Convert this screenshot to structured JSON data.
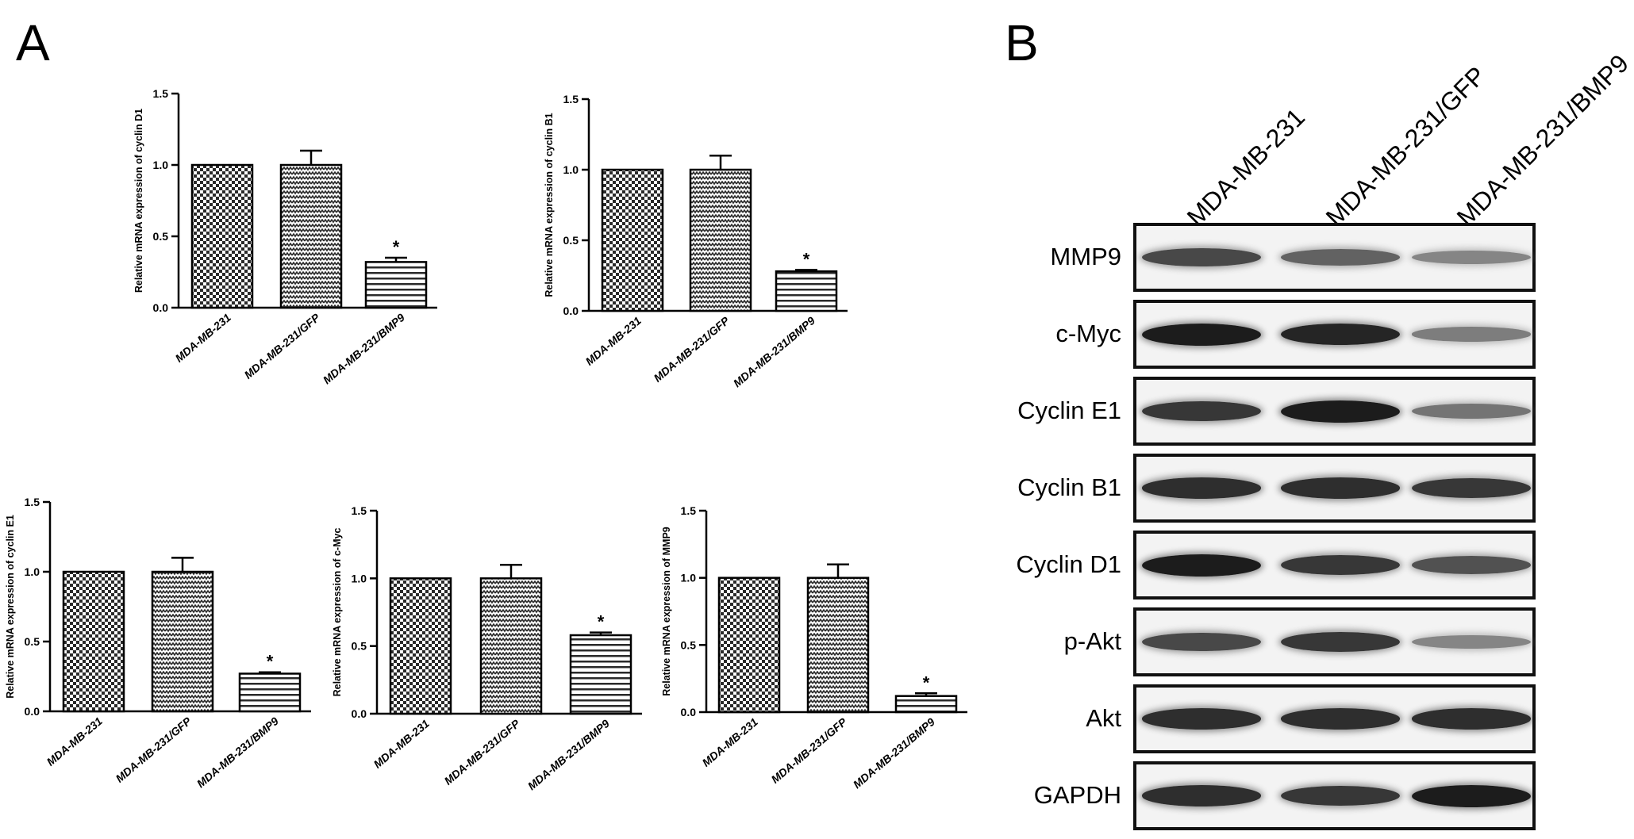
{
  "panel_labels": {
    "a": "A",
    "b": "B"
  },
  "colors": {
    "bar_fill": "#ffffff",
    "axis": "#000000",
    "pattern_dark": "#2a2a2a"
  },
  "chart_data": [
    {
      "type": "bar",
      "ylabel": "Relative mRNA expression of cyclin D1",
      "categories": [
        "MDA-MB-231",
        "MDA-MB-231/GFP",
        "MDA-MB-231/BMP9"
      ],
      "series": [
        {
          "values": [
            1.0,
            1.0,
            0.32
          ],
          "error": [
            0,
            0.1,
            0.03
          ]
        }
      ],
      "yticks": [
        "0.0",
        "0.5",
        "1.0",
        "1.5"
      ],
      "ylim": [
        0,
        1.5
      ],
      "annotations": [
        "",
        "",
        "*"
      ]
    },
    {
      "type": "bar",
      "ylabel": "Relative mRNA expression of cyclin B1",
      "categories": [
        "MDA-MB-231",
        "MDA-MB-231/GFP",
        "MDA-MB-231/BMP9"
      ],
      "series": [
        {
          "values": [
            1.0,
            1.0,
            0.28
          ],
          "error": [
            0,
            0.1,
            0.01
          ]
        }
      ],
      "yticks": [
        "0.0",
        "0.5",
        "1.0",
        "1.5"
      ],
      "ylim": [
        0,
        1.5
      ],
      "annotations": [
        "",
        "",
        "*"
      ]
    },
    {
      "type": "bar",
      "ylabel": "Relative mRNA expression of cyclin E1",
      "categories": [
        "MDA-MB-231",
        "MDA-MB-231/GFP",
        "MDA-MB-231/BMP9"
      ],
      "series": [
        {
          "values": [
            1.0,
            1.0,
            0.27
          ],
          "error": [
            0,
            0.1,
            0.01
          ]
        }
      ],
      "yticks": [
        "0.0",
        "0.5",
        "1.0",
        "1.5"
      ],
      "ylim": [
        0,
        1.5
      ],
      "annotations": [
        "",
        "",
        "*"
      ]
    },
    {
      "type": "bar",
      "ylabel": "Relative mRNA expression of c-Myc",
      "categories": [
        "MDA-MB-231",
        "MDA-MB-231/GFP",
        "MDA-MB-231/BMP9"
      ],
      "series": [
        {
          "values": [
            1.0,
            1.0,
            0.58
          ],
          "error": [
            0,
            0.1,
            0.02
          ]
        }
      ],
      "yticks": [
        "0.0",
        "0.5",
        "1.0",
        "1.5"
      ],
      "ylim": [
        0,
        1.5
      ],
      "annotations": [
        "",
        "",
        "*"
      ]
    },
    {
      "type": "bar",
      "ylabel": "Relative mRNA expression of MMP9",
      "categories": [
        "MDA-MB-231",
        "MDA-MB-231/GFP",
        "MDA-MB-231/BMP9"
      ],
      "series": [
        {
          "values": [
            1.0,
            1.0,
            0.12
          ],
          "error": [
            0,
            0.1,
            0.02
          ]
        }
      ],
      "yticks": [
        "0.0",
        "0.5",
        "1.0",
        "1.5"
      ],
      "ylim": [
        0,
        1.5
      ],
      "annotations": [
        "",
        "",
        "*"
      ]
    }
  ],
  "western_blot": {
    "lanes": [
      "MDA-MB-231",
      "MDA-MB-231/GFP",
      "MDA-MB-231/BMP9"
    ],
    "rows": [
      {
        "label": "MMP9",
        "intensity": [
          0.75,
          0.6,
          0.4
        ]
      },
      {
        "label": "c-Myc",
        "intensity": [
          1.0,
          0.95,
          0.45
        ]
      },
      {
        "label": "Cyclin E1",
        "intensity": [
          0.85,
          1.0,
          0.5
        ]
      },
      {
        "label": "Cyclin B1",
        "intensity": [
          0.9,
          0.9,
          0.85
        ]
      },
      {
        "label": "Cyclin D1",
        "intensity": [
          1.0,
          0.85,
          0.7
        ]
      },
      {
        "label": "p-Akt",
        "intensity": [
          0.75,
          0.85,
          0.4
        ]
      },
      {
        "label": "Akt",
        "intensity": [
          0.9,
          0.9,
          0.9
        ]
      },
      {
        "label": "GAPDH",
        "intensity": [
          0.9,
          0.85,
          1.0
        ]
      }
    ]
  }
}
